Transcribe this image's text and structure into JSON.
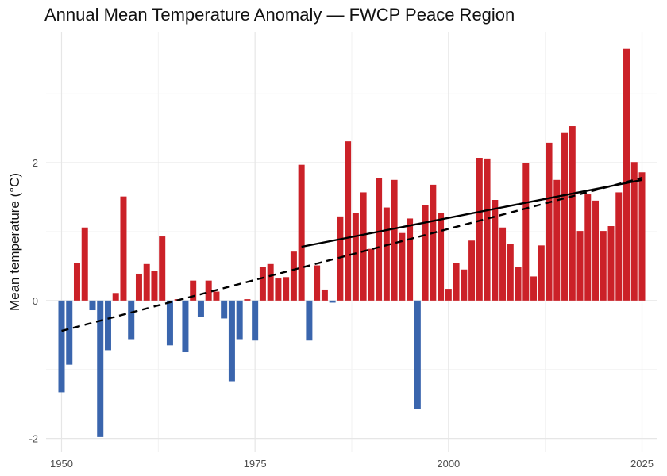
{
  "chart_data": {
    "type": "bar",
    "title": "Annual Mean Temperature Anomaly — FWCP Peace Region",
    "xlabel": "",
    "ylabel": "Mean temperature (°C)",
    "xlim": [
      1948,
      2027
    ],
    "ylim": [
      -2.2,
      3.9
    ],
    "x_ticks": [
      1950,
      1975,
      2000,
      2025
    ],
    "y_ticks": [
      -2,
      0,
      2
    ],
    "grid": true,
    "legend": "none",
    "colors": {
      "positive": "#cb2128",
      "negative": "#3a65ad",
      "grid_major": "#e6e6e6",
      "grid_minor": "#f2f2f2",
      "trend": "#000000"
    },
    "x": [
      1950,
      1951,
      1952,
      1953,
      1954,
      1955,
      1956,
      1957,
      1958,
      1959,
      1960,
      1961,
      1962,
      1963,
      1964,
      1965,
      1966,
      1967,
      1968,
      1969,
      1970,
      1971,
      1972,
      1973,
      1974,
      1975,
      1976,
      1977,
      1978,
      1979,
      1980,
      1981,
      1982,
      1983,
      1984,
      1985,
      1986,
      1987,
      1988,
      1989,
      1990,
      1991,
      1992,
      1993,
      1994,
      1995,
      1996,
      1997,
      1998,
      1999,
      2000,
      2001,
      2002,
      2003,
      2004,
      2005,
      2006,
      2007,
      2008,
      2009,
      2010,
      2011,
      2012,
      2013,
      2014,
      2015,
      2016,
      2017,
      2018,
      2019,
      2020,
      2021,
      2022,
      2023,
      2024,
      2025
    ],
    "values": [
      -1.33,
      -0.93,
      0.54,
      1.06,
      -0.14,
      -1.98,
      -0.72,
      0.11,
      1.51,
      -0.56,
      0.39,
      0.53,
      0.43,
      0.93,
      -0.65,
      0.02,
      -0.75,
      0.29,
      -0.24,
      0.29,
      0.13,
      -0.26,
      -1.17,
      -0.56,
      0.02,
      -0.58,
      0.49,
      0.53,
      0.32,
      0.34,
      0.71,
      1.97,
      -0.58,
      0.51,
      0.16,
      -0.03,
      1.22,
      2.31,
      1.27,
      1.57,
      0.75,
      1.78,
      1.35,
      1.75,
      0.98,
      1.19,
      -1.57,
      1.38,
      1.68,
      1.27,
      0.17,
      0.55,
      0.45,
      0.87,
      2.07,
      2.06,
      1.46,
      1.06,
      0.82,
      0.49,
      1.99,
      0.35,
      0.8,
      2.29,
      1.75,
      2.43,
      2.53,
      1.01,
      1.54,
      1.45,
      1.01,
      1.08,
      1.57,
      3.65,
      2.01,
      1.86
    ],
    "trend_lines": [
      {
        "style": "dashed",
        "x": [
          1950,
          2025
        ],
        "y": [
          -0.44,
          1.78
        ]
      },
      {
        "style": "solid",
        "x": [
          1981,
          2025
        ],
        "y": [
          0.78,
          1.75
        ]
      }
    ]
  }
}
